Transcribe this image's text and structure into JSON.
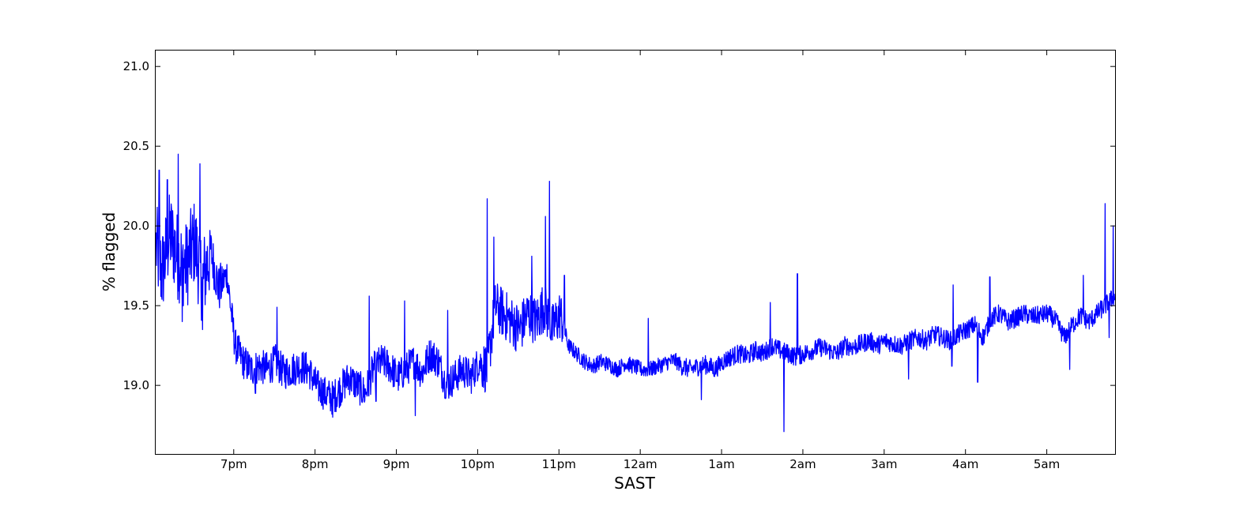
{
  "chart_data": {
    "type": "line",
    "title": "",
    "xlabel": "SAST",
    "ylabel": "% flagged",
    "xlim": [
      18.04,
      5.84
    ],
    "ylim": [
      18.57,
      21.1
    ],
    "x_tick_labels": [
      "7pm",
      "8pm",
      "9pm",
      "10pm",
      "11pm",
      "12am",
      "1am",
      "2am",
      "3am",
      "4am",
      "5am"
    ],
    "x_tick_hours": [
      19,
      20,
      21,
      22,
      23,
      24,
      25,
      26,
      27,
      28,
      29
    ],
    "y_ticks": [
      19.0,
      19.5,
      20.0,
      20.5,
      21.0
    ],
    "y_tick_labels": [
      "19.0",
      "19.5",
      "20.0",
      "20.5",
      "21.0"
    ],
    "grid": false,
    "line_color": "#0000ff",
    "series": [
      {
        "x": [
          "18:02",
          "18:07",
          "18:13",
          "18:19",
          "18:25",
          "18:31",
          "18:37",
          "18:43",
          "18:49",
          "18:55",
          "19:01",
          "19:07",
          "19:13",
          "19:19",
          "19:25",
          "19:31",
          "19:37",
          "19:43",
          "19:49",
          "19:55",
          "20:01",
          "20:07",
          "20:13",
          "20:19",
          "20:25",
          "20:31",
          "20:37",
          "20:43",
          "20:49",
          "20:55",
          "21:01",
          "21:07",
          "21:13",
          "21:19",
          "21:25",
          "21:31",
          "21:37",
          "21:43",
          "21:49",
          "21:55",
          "22:01",
          "22:07",
          "22:13",
          "22:19",
          "22:25",
          "22:31",
          "22:37",
          "22:43",
          "22:49",
          "22:55",
          "23:01",
          "23:07",
          "23:13",
          "23:19",
          "23:25",
          "23:31",
          "23:37",
          "23:43",
          "23:49",
          "23:55",
          "00:01",
          "00:07",
          "00:13",
          "00:19",
          "00:25",
          "00:31",
          "00:37",
          "00:43",
          "00:49",
          "00:55",
          "01:01",
          "01:07",
          "01:13",
          "01:19",
          "01:25",
          "01:31",
          "01:37",
          "01:43",
          "01:49",
          "01:55",
          "02:01",
          "02:07",
          "02:13",
          "02:19",
          "02:25",
          "02:31",
          "02:37",
          "02:43",
          "02:49",
          "02:55",
          "03:01",
          "03:07",
          "03:13",
          "03:19",
          "03:25",
          "03:31",
          "03:37",
          "03:43",
          "03:49",
          "03:55",
          "04:01",
          "04:07",
          "04:13",
          "04:19",
          "04:25",
          "04:31",
          "04:37",
          "04:43",
          "04:49",
          "04:55",
          "05:01",
          "05:07",
          "05:13",
          "05:19",
          "05:25",
          "05:31",
          "05:37",
          "05:43",
          "05:49"
        ],
        "y": [
          19.9,
          19.7,
          19.95,
          19.8,
          19.75,
          19.9,
          19.65,
          19.85,
          19.6,
          19.7,
          19.25,
          19.15,
          19.1,
          19.12,
          19.1,
          19.15,
          19.08,
          19.1,
          19.12,
          19.1,
          19.0,
          18.95,
          18.92,
          18.98,
          19.05,
          19.0,
          18.95,
          19.1,
          19.15,
          19.12,
          19.05,
          19.1,
          19.15,
          19.08,
          19.2,
          19.15,
          19.0,
          19.05,
          19.1,
          19.05,
          19.15,
          19.1,
          19.5,
          19.45,
          19.4,
          19.35,
          19.45,
          19.4,
          19.5,
          19.35,
          19.45,
          19.25,
          19.2,
          19.15,
          19.12,
          19.15,
          19.13,
          19.1,
          19.14,
          19.12,
          19.1,
          19.1,
          19.12,
          19.14,
          19.16,
          19.12,
          19.1,
          19.12,
          19.13,
          19.1,
          19.15,
          19.18,
          19.2,
          19.18,
          19.22,
          19.2,
          19.25,
          19.22,
          19.2,
          19.18,
          19.2,
          19.22,
          19.24,
          19.22,
          19.2,
          19.25,
          19.24,
          19.26,
          19.28,
          19.25,
          19.28,
          19.26,
          19.25,
          19.28,
          19.3,
          19.28,
          19.32,
          19.3,
          19.28,
          19.32,
          19.35,
          19.38,
          19.3,
          19.42,
          19.45,
          19.4,
          19.42,
          19.45,
          19.43,
          19.44,
          19.45,
          19.4,
          19.3,
          19.38,
          19.44,
          19.4,
          19.45,
          19.5,
          19.55
        ],
        "spikes": [
          {
            "x": "18:05",
            "y": 20.35
          },
          {
            "x": "18:11",
            "y": 20.29
          },
          {
            "x": "18:19",
            "y": 20.45
          },
          {
            "x": "18:22",
            "y": 19.4
          },
          {
            "x": "18:35",
            "y": 20.39
          },
          {
            "x": "18:37",
            "y": 19.35
          },
          {
            "x": "18:50",
            "y": 19.74
          },
          {
            "x": "19:16",
            "y": 18.95
          },
          {
            "x": "19:32",
            "y": 19.49
          },
          {
            "x": "20:13",
            "y": 18.8
          },
          {
            "x": "20:40",
            "y": 19.56
          },
          {
            "x": "20:45",
            "y": 18.9
          },
          {
            "x": "21:06",
            "y": 19.53
          },
          {
            "x": "21:14",
            "y": 18.81
          },
          {
            "x": "21:38",
            "y": 19.47
          },
          {
            "x": "22:07",
            "y": 20.17
          },
          {
            "x": "22:12",
            "y": 19.93
          },
          {
            "x": "22:40",
            "y": 19.81
          },
          {
            "x": "22:53",
            "y": 20.28
          },
          {
            "x": "22:50",
            "y": 20.06
          },
          {
            "x": "23:04",
            "y": 19.69
          },
          {
            "x": "00:06",
            "y": 19.42
          },
          {
            "x": "00:45",
            "y": 18.91
          },
          {
            "x": "01:36",
            "y": 19.52
          },
          {
            "x": "01:46",
            "y": 18.71
          },
          {
            "x": "01:56",
            "y": 19.7
          },
          {
            "x": "03:18",
            "y": 19.04
          },
          {
            "x": "03:50",
            "y": 19.12
          },
          {
            "x": "03:51",
            "y": 19.63
          },
          {
            "x": "04:09",
            "y": 19.02
          },
          {
            "x": "04:18",
            "y": 19.68
          },
          {
            "x": "05:17",
            "y": 19.1
          },
          {
            "x": "05:27",
            "y": 19.69
          },
          {
            "x": "05:43",
            "y": 20.14
          },
          {
            "x": "05:46",
            "y": 19.3
          },
          {
            "x": "05:49",
            "y": 20.0
          }
        ]
      }
    ]
  }
}
